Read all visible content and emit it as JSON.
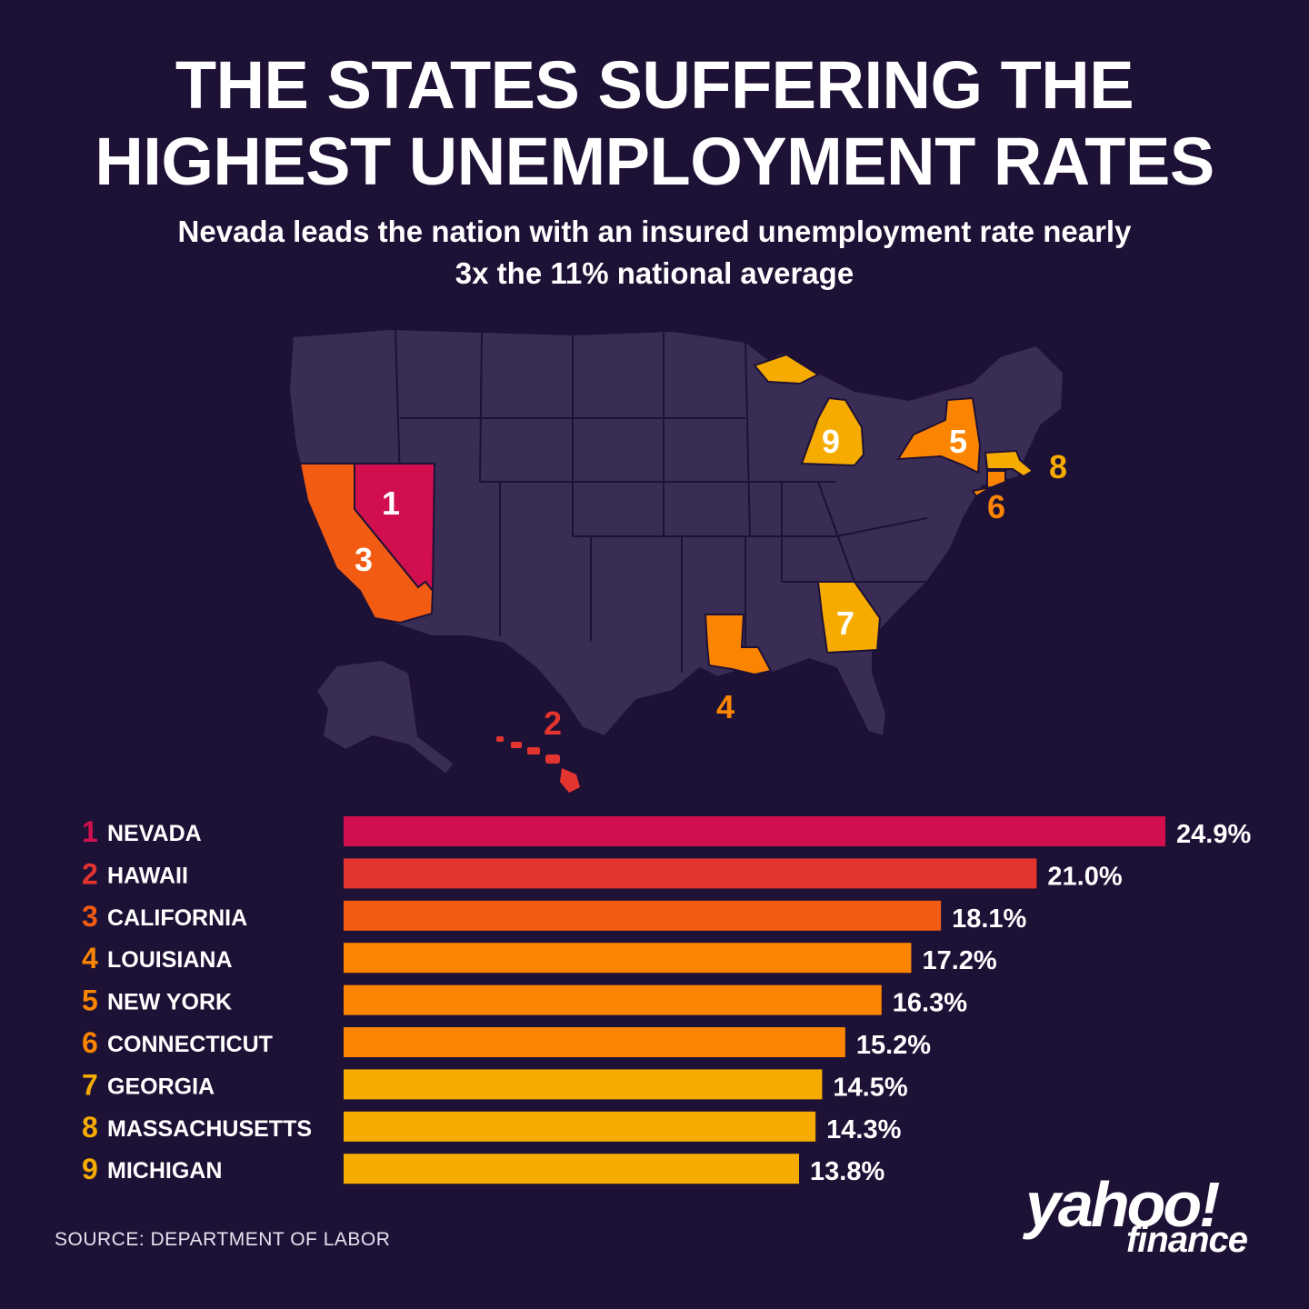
{
  "title_lines": [
    "THE STATES SUFFERING THE",
    "HIGHEST UNEMPLOYMENT RATES"
  ],
  "subtitle_lines": [
    "Nevada leads the nation with an insured unemployment rate nearly",
    "3x the 11% national average"
  ],
  "source": "SOURCE:  DEPARTMENT OF LABOR",
  "logo": {
    "text": "yahoo!",
    "sub": "finance"
  },
  "colors": {
    "background": "#1e1136",
    "map_fill": "#3a2d55",
    "map_border": "#1e1136",
    "rank_1": "#d10f4f",
    "rank_2": "#e3342f",
    "rank_3": "#f25c12",
    "rank_4_6": "#fb8500",
    "rank_7_9": "#f5ab00"
  },
  "chart_data": {
    "type": "bar",
    "orientation": "horizontal",
    "unit": "%",
    "xlim": [
      0,
      24.9
    ],
    "categories": [
      "NEVADA",
      "HAWAII",
      "CALIFORNIA",
      "LOUISIANA",
      "NEW YORK",
      "CONNECTICUT",
      "GEORGIA",
      "MASSACHUSETTS",
      "MICHIGAN"
    ],
    "ranks": [
      "1",
      "2",
      "3",
      "4",
      "5",
      "6",
      "7",
      "8",
      "9"
    ],
    "values": [
      24.9,
      21.0,
      18.1,
      17.2,
      16.3,
      15.2,
      14.5,
      14.3,
      13.8
    ],
    "value_labels": [
      "24.9%",
      "21.0%",
      "18.1%",
      "17.2%",
      "16.3%",
      "15.2%",
      "14.5%",
      "14.3%",
      "13.8%"
    ],
    "bar_colors": [
      "#d10f4f",
      "#e3342f",
      "#f25c12",
      "#fb8500",
      "#fb8500",
      "#fb8500",
      "#f5ab00",
      "#f5ab00",
      "#f5ab00"
    ]
  }
}
